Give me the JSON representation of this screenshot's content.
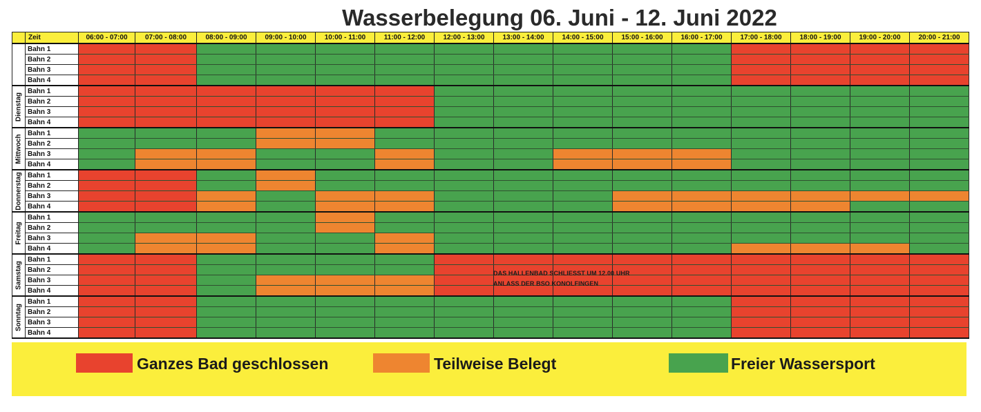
{
  "title": "Wasserbelegung 06. Juni - 12. Juni 2022",
  "colors": {
    "R": "#e8432e",
    "O": "#ee8530",
    "G": "#48a34e",
    "header_yellow": "#fbee3c"
  },
  "table": {
    "zeit_label": "Zeit",
    "time_slots": [
      "06:00 - 07:00",
      "07:00 - 08:00",
      "08:00 - 09:00",
      "09:00 - 10:00",
      "10:00 - 11:00",
      "11:00 - 12:00",
      "12:00 - 13:00",
      "13:00 - 14:00",
      "14:00 - 15:00",
      "15:00 - 16:00",
      "16:00 - 17:00",
      "17:00 - 18:00",
      "18:00 - 19:00",
      "19:00 - 20:00",
      "20:00 - 21:00"
    ],
    "days": [
      {
        "name": "",
        "lanes": [
          {
            "label": "Bahn 1",
            "cells": [
              "R",
              "R",
              "G",
              "G",
              "G",
              "G",
              "G",
              "G",
              "G",
              "G",
              "G",
              "R",
              "R",
              "R",
              "R"
            ]
          },
          {
            "label": "Bahn 2",
            "cells": [
              "R",
              "R",
              "G",
              "G",
              "G",
              "G",
              "G",
              "G",
              "G",
              "G",
              "G",
              "R",
              "R",
              "R",
              "R"
            ]
          },
          {
            "label": "Bahn 3",
            "cells": [
              "R",
              "R",
              "G",
              "G",
              "G",
              "G",
              "G",
              "G",
              "G",
              "G",
              "G",
              "R",
              "R",
              "R",
              "R"
            ]
          },
          {
            "label": "Bahn 4",
            "cells": [
              "R",
              "R",
              "G",
              "G",
              "G",
              "G",
              "G",
              "G",
              "G",
              "G",
              "G",
              "R",
              "R",
              "R",
              "R"
            ]
          }
        ]
      },
      {
        "name": "Dienstag",
        "lanes": [
          {
            "label": "Bahn 1",
            "cells": [
              "R",
              "R",
              "R",
              "R",
              "R",
              "R",
              "G",
              "G",
              "G",
              "G",
              "G",
              "G",
              "G",
              "G",
              "G"
            ]
          },
          {
            "label": "Bahn 2",
            "cells": [
              "R",
              "R",
              "R",
              "R",
              "R",
              "R",
              "G",
              "G",
              "G",
              "G",
              "G",
              "G",
              "G",
              "G",
              "G"
            ]
          },
          {
            "label": "Bahn 3",
            "cells": [
              "R",
              "R",
              "R",
              "R",
              "R",
              "R",
              "G",
              "G",
              "G",
              "G",
              "G",
              "G",
              "G",
              "G",
              "G"
            ]
          },
          {
            "label": "Bahn 4",
            "cells": [
              "R",
              "R",
              "R",
              "R",
              "R",
              "R",
              "G",
              "G",
              "G",
              "G",
              "G",
              "G",
              "G",
              "G",
              "G"
            ]
          }
        ]
      },
      {
        "name": "Mittwoch",
        "lanes": [
          {
            "label": "Bahn 1",
            "cells": [
              "G",
              "G",
              "G",
              "O",
              "O",
              "G",
              "G",
              "G",
              "G",
              "G",
              "G",
              "G",
              "G",
              "G",
              "G"
            ]
          },
          {
            "label": "Bahn 2",
            "cells": [
              "G",
              "G",
              "G",
              "O",
              "O",
              "G",
              "G",
              "G",
              "G",
              "G",
              "G",
              "G",
              "G",
              "G",
              "G"
            ]
          },
          {
            "label": "Bahn 3",
            "cells": [
              "G",
              "O",
              "O",
              "G",
              "G",
              "O",
              "G",
              "G",
              "O",
              "O",
              "O",
              "G",
              "G",
              "G",
              "G"
            ]
          },
          {
            "label": "Bahn 4",
            "cells": [
              "G",
              "O",
              "O",
              "G",
              "G",
              "O",
              "G",
              "G",
              "O",
              "O",
              "O",
              "G",
              "G",
              "G",
              "G"
            ]
          }
        ]
      },
      {
        "name": "Donnerstag",
        "lanes": [
          {
            "label": "Bahn 1",
            "cells": [
              "R",
              "R",
              "G",
              "O",
              "G",
              "G",
              "G",
              "G",
              "G",
              "G",
              "G",
              "G",
              "G",
              "G",
              "G"
            ]
          },
          {
            "label": "Bahn 2",
            "cells": [
              "R",
              "R",
              "G",
              "O",
              "G",
              "G",
              "G",
              "G",
              "G",
              "G",
              "G",
              "G",
              "G",
              "G",
              "G"
            ]
          },
          {
            "label": "Bahn 3",
            "cells": [
              "R",
              "R",
              "O",
              "G",
              "O",
              "O",
              "G",
              "G",
              "G",
              "O",
              "O",
              "O",
              "O",
              "O",
              "O"
            ]
          },
          {
            "label": "Bahn 4",
            "cells": [
              "R",
              "R",
              "O",
              "G",
              "O",
              "O",
              "G",
              "G",
              "G",
              "O",
              "O",
              "O",
              "O",
              "G",
              "G"
            ]
          }
        ]
      },
      {
        "name": "Freitag",
        "lanes": [
          {
            "label": "Bahn 1",
            "cells": [
              "G",
              "G",
              "G",
              "G",
              "O",
              "G",
              "G",
              "G",
              "G",
              "G",
              "G",
              "G",
              "G",
              "G",
              "G"
            ]
          },
          {
            "label": "Bahn 2",
            "cells": [
              "G",
              "G",
              "G",
              "G",
              "O",
              "G",
              "G",
              "G",
              "G",
              "G",
              "G",
              "G",
              "G",
              "G",
              "G"
            ]
          },
          {
            "label": "Bahn 3",
            "cells": [
              "G",
              "O",
              "O",
              "G",
              "G",
              "O",
              "G",
              "G",
              "G",
              "G",
              "G",
              "G",
              "G",
              "G",
              "G"
            ]
          },
          {
            "label": "Bahn 4",
            "cells": [
              "G",
              "O",
              "O",
              "G",
              "G",
              "O",
              "G",
              "G",
              "G",
              "G",
              "G",
              "O",
              "O",
              "O",
              "G"
            ]
          }
        ]
      },
      {
        "name": "Samstag",
        "lanes": [
          {
            "label": "Bahn 1",
            "cells": [
              "R",
              "R",
              "G",
              "G",
              "G",
              "G",
              "R",
              "R",
              "R",
              "R",
              "R",
              "R",
              "R",
              "R",
              "R"
            ]
          },
          {
            "label": "Bahn 2",
            "cells": [
              "R",
              "R",
              "G",
              "G",
              "G",
              "G",
              "R",
              "R",
              "R",
              "R",
              "R",
              "R",
              "R",
              "R",
              "R"
            ]
          },
          {
            "label": "Bahn 3",
            "cells": [
              "R",
              "R",
              "G",
              "O",
              "O",
              "O",
              "R",
              "R",
              "R",
              "R",
              "R",
              "R",
              "R",
              "R",
              "R"
            ]
          },
          {
            "label": "Bahn 4",
            "cells": [
              "R",
              "R",
              "G",
              "O",
              "O",
              "O",
              "R",
              "R",
              "R",
              "R",
              "R",
              "R",
              "R",
              "R",
              "R"
            ]
          }
        ]
      },
      {
        "name": "Sonntag",
        "lanes": [
          {
            "label": "Bahn 1",
            "cells": [
              "R",
              "R",
              "G",
              "G",
              "G",
              "G",
              "G",
              "G",
              "G",
              "G",
              "G",
              "R",
              "R",
              "R",
              "R"
            ]
          },
          {
            "label": "Bahn 2",
            "cells": [
              "R",
              "R",
              "G",
              "G",
              "G",
              "G",
              "G",
              "G",
              "G",
              "G",
              "G",
              "R",
              "R",
              "R",
              "R"
            ]
          },
          {
            "label": "Bahn 3",
            "cells": [
              "R",
              "R",
              "G",
              "G",
              "G",
              "G",
              "G",
              "G",
              "G",
              "G",
              "G",
              "R",
              "R",
              "R",
              "R"
            ]
          },
          {
            "label": "Bahn 4",
            "cells": [
              "R",
              "R",
              "G",
              "G",
              "G",
              "G",
              "G",
              "G",
              "G",
              "G",
              "G",
              "R",
              "R",
              "R",
              "R"
            ]
          }
        ]
      }
    ]
  },
  "note": {
    "line1": "DAS HALLENBAD SCHLIESST UM 12.00 UHR",
    "line2": "ANLASS DER BSO KONOLFINGEN"
  },
  "legend": [
    {
      "label": "Ganzes Bad geschlossen",
      "color": "#e8432e"
    },
    {
      "label": "Teilweise Belegt",
      "color": "#ee8530"
    },
    {
      "label": "Freier Wassersport",
      "color": "#48a34e"
    }
  ]
}
